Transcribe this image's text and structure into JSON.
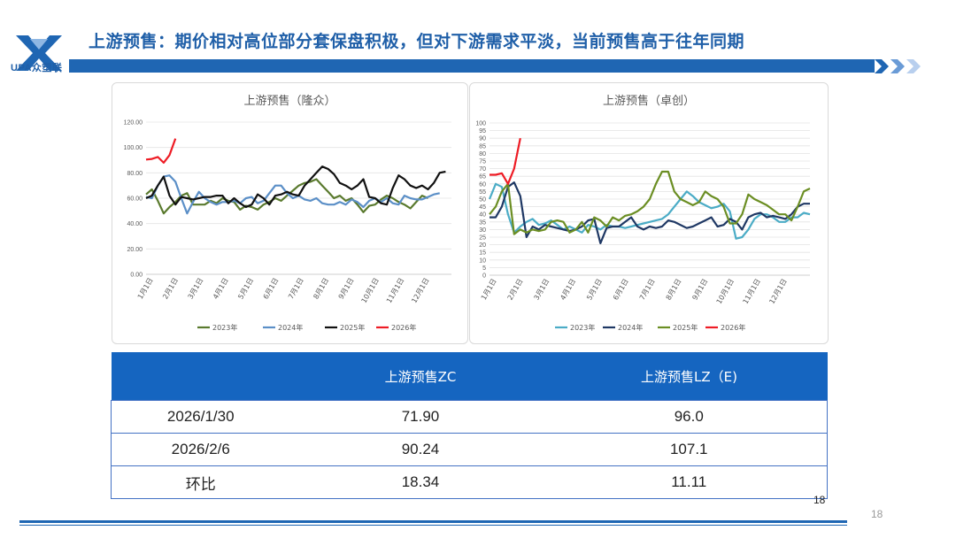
{
  "header": {
    "logo_text": "UPA众塑联",
    "title": "上游预售：期价相对高位部分套保盘积极，但对下游需求平淡，当前预售高于往年同期"
  },
  "colors": {
    "brand_blue": "#1f66b3",
    "table_header": "#1565c0",
    "y2023": "#5a7a2e",
    "y2024": "#5b8fc7",
    "y2025": "#111111",
    "y2026": "#ee1c25",
    "lz2023": "#4bacc6",
    "lz2024": "#1f3864",
    "lz2025": "#6b8e23"
  },
  "chart_data": [
    {
      "type": "line",
      "title": "上游预售（隆众）",
      "ylim": [
        0,
        120
      ],
      "yticks": [
        "0.00",
        "20.00",
        "40.00",
        "60.00",
        "80.00",
        "100.00",
        "120.00"
      ],
      "x_ticks": [
        "1月1日",
        "2月1日",
        "3月1日",
        "4月1日",
        "5月1日",
        "6月1日",
        "7月1日",
        "8月1日",
        "9月1日",
        "10月1日",
        "11月1日",
        "12月1日"
      ],
      "grid": true,
      "legend_position": "bottom",
      "series": [
        {
          "name": "2023年",
          "color_key": "y2023",
          "values": [
            63,
            67,
            58,
            48,
            53,
            57,
            62,
            64,
            55,
            55,
            55,
            58,
            56,
            60,
            58,
            57,
            51,
            54,
            53,
            51,
            55,
            57,
            60,
            58,
            62,
            66,
            70,
            72,
            73,
            75,
            70,
            65,
            60,
            62,
            58,
            60,
            55,
            49,
            54,
            55,
            59,
            62,
            60,
            57,
            55,
            52,
            57,
            62,
            60
          ]
        },
        {
          "name": "2024年",
          "color_key": "y2024",
          "values": [
            61,
            60,
            70,
            77,
            78,
            73,
            60,
            48,
            57,
            65,
            60,
            57,
            55,
            57,
            57,
            58,
            56,
            60,
            61,
            56,
            58,
            64,
            70,
            70,
            64,
            60,
            62,
            59,
            58,
            60,
            56,
            55,
            55,
            57,
            55,
            59,
            57,
            53,
            58,
            60,
            57,
            60,
            56,
            55,
            62,
            60,
            59,
            59,
            61,
            63,
            64
          ]
        },
        {
          "name": "2025年",
          "color_key": "y2025",
          "values": [
            60,
            62,
            70,
            77,
            62,
            55,
            61,
            60,
            59,
            60,
            61,
            61,
            62,
            62,
            56,
            60,
            56,
            53,
            55,
            63,
            60,
            55,
            62,
            63,
            65,
            63,
            62,
            70,
            75,
            80,
            85,
            83,
            79,
            72,
            70,
            67,
            70,
            75,
            61,
            60,
            56,
            55,
            68,
            78,
            75,
            70,
            68,
            70,
            67,
            72,
            80,
            81
          ]
        },
        {
          "name": "2026年",
          "color_key": "y2026",
          "values": [
            90.5,
            91,
            92.5,
            88,
            94,
            107
          ]
        }
      ]
    },
    {
      "type": "line",
      "title": "上游预售（卓创）",
      "ylim": [
        0,
        100
      ],
      "yticks": [
        "0",
        "5",
        "10",
        "15",
        "20",
        "25",
        "30",
        "35",
        "40",
        "45",
        "50",
        "55",
        "60",
        "65",
        "70",
        "75",
        "80",
        "85",
        "90",
        "95",
        "100"
      ],
      "x_ticks": [
        "1月1日",
        "2月1日",
        "3月1日",
        "4月1日",
        "5月1日",
        "6月1日",
        "7月1日",
        "8月1日",
        "9月1日",
        "10月1日",
        "11月1日",
        "12月1日"
      ],
      "grid": true,
      "legend_position": "bottom",
      "series": [
        {
          "name": "2023年",
          "color_key": "lz2023",
          "values": [
            50,
            60,
            58,
            40,
            28,
            32,
            35,
            37,
            33,
            34,
            36,
            33,
            30,
            32,
            30,
            28,
            33,
            32,
            30,
            33,
            32,
            32,
            31,
            32,
            33,
            34,
            35,
            36,
            37,
            40,
            45,
            50,
            55,
            52,
            48,
            46,
            44,
            45,
            47,
            42,
            24,
            25,
            30,
            37,
            40,
            40,
            38,
            35,
            35,
            38,
            38,
            41,
            40
          ]
        },
        {
          "name": "2024年",
          "color_key": "lz2024",
          "values": [
            38,
            38,
            45,
            58,
            61,
            52,
            25,
            32,
            30,
            33,
            32,
            31,
            30,
            29,
            30,
            32,
            36,
            37,
            21,
            31,
            32,
            32,
            35,
            38,
            32,
            30,
            32,
            31,
            32,
            36,
            35,
            33,
            31,
            32,
            34,
            36,
            38,
            32,
            33,
            37,
            35,
            30,
            38,
            40,
            41,
            38,
            39,
            38,
            37,
            40,
            45,
            47,
            47
          ]
        },
        {
          "name": "2025年",
          "color_key": "lz2025",
          "values": [
            40,
            45,
            55,
            60,
            27,
            30,
            28,
            30,
            29,
            30,
            35,
            36,
            35,
            28,
            30,
            35,
            28,
            38,
            36,
            32,
            38,
            36,
            39,
            40,
            42,
            45,
            50,
            60,
            68,
            68,
            55,
            50,
            48,
            46,
            48,
            55,
            52,
            50,
            45,
            34,
            34,
            40,
            53,
            50,
            48,
            46,
            43,
            40,
            40,
            36,
            45,
            55,
            57
          ]
        },
        {
          "name": "2026年",
          "color_key": "y2026",
          "values": [
            66,
            66,
            67,
            60,
            70,
            90
          ]
        }
      ]
    }
  ],
  "table": {
    "headers": [
      "",
      "上游预售ZC",
      "上游预售LZ（E)"
    ],
    "rows": [
      [
        "2026/1/30",
        "71.90",
        "96.0"
      ],
      [
        "2026/2/6",
        "90.24",
        "107.1"
      ],
      [
        "环比",
        "18.34",
        "11.11"
      ]
    ]
  },
  "footer": {
    "page_inner": "18",
    "page_outer": "18"
  }
}
